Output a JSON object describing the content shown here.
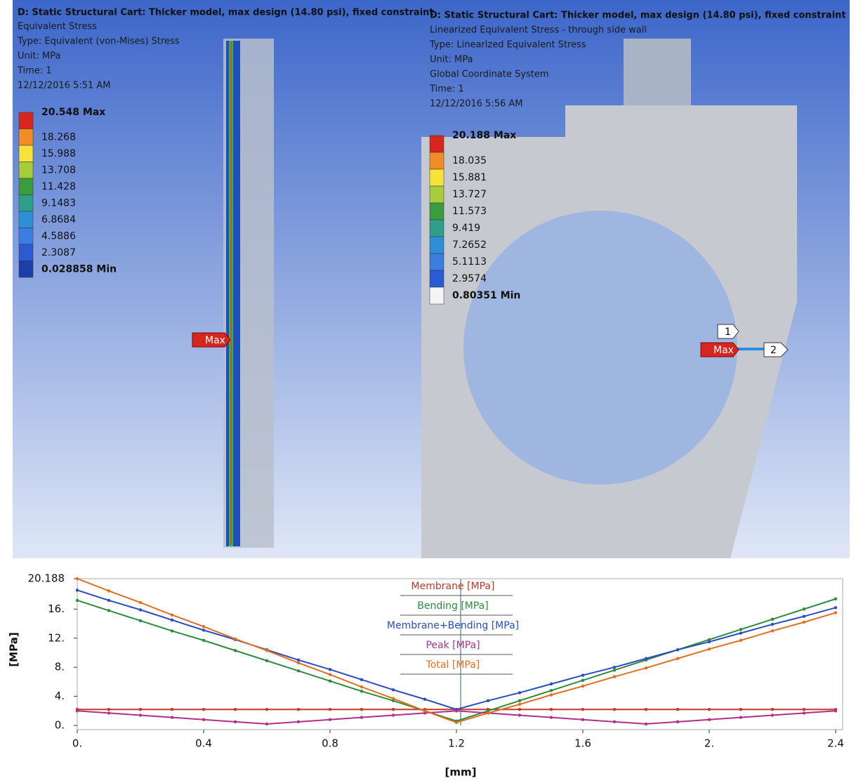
{
  "left_panel": {
    "title": "D: Static Structural Cart: Thicker model, max design (14.80 psi), fixed constraint",
    "lines": [
      "Equivalent Stress",
      "Type: Equivalent (von-Mises) Stress",
      "Unit: MPa",
      "Time: 1",
      "12/12/2016 5:51 AM"
    ],
    "legend": [
      "20.548 Max",
      "18.268",
      "15.988",
      "13.708",
      "11.428",
      "9.1483",
      "6.8684",
      "4.5886",
      "2.3087",
      "0.028858 Min"
    ],
    "probe": "Max"
  },
  "right_panel": {
    "title": "D: Static Structural Cart: Thicker model, max design (14.80 psi), fixed constraint",
    "lines": [
      "Linearized Equivalent Stress - through side wall",
      "Type: Linearized Equivalent Stress",
      "Unit: MPa",
      "Global Coordinate System",
      "Time: 1",
      "12/12/2016 5:56 AM"
    ],
    "legend": [
      "20.188 Max",
      "18.035",
      "15.881",
      "13.727",
      "11.573",
      "9.419",
      "7.2652",
      "5.1113",
      "2.9574",
      "0.80351 Min"
    ],
    "probe": "Max",
    "point_1": "1",
    "point_2": "2"
  },
  "chart_data": {
    "type": "line",
    "xlabel": "[mm]",
    "ylabel": "[MPa]",
    "x": [
      0,
      0.1,
      0.2,
      0.3,
      0.4,
      0.5,
      0.6,
      0.7,
      0.8,
      0.9,
      1.0,
      1.1,
      1.2,
      1.3,
      1.4,
      1.5,
      1.6,
      1.7,
      1.8,
      1.9,
      2.0,
      2.1,
      2.2,
      2.3,
      2.4
    ],
    "xlim": [
      0,
      2.4
    ],
    "xticks": [
      {
        "value": 0,
        "label": "0."
      },
      0.4,
      0.8,
      1.2,
      1.6,
      {
        "value": 2,
        "label": "2."
      },
      2.4
    ],
    "ylim": [
      0,
      20.188
    ],
    "yticks": [
      {
        "value": 0,
        "label": "0."
      },
      {
        "value": 4,
        "label": "4."
      },
      {
        "value": 8,
        "label": "8."
      },
      {
        "value": 12,
        "label": "12."
      },
      {
        "value": 16,
        "label": "16."
      },
      20.188
    ],
    "series": [
      {
        "name": "Membrane [MPa]",
        "color": "#c0392b",
        "values": [
          2.2,
          2.2,
          2.2,
          2.2,
          2.2,
          2.2,
          2.2,
          2.2,
          2.2,
          2.2,
          2.2,
          2.2,
          2.2,
          2.2,
          2.2,
          2.2,
          2.2,
          2.2,
          2.2,
          2.2,
          2.2,
          2.2,
          2.2,
          2.2,
          2.2
        ]
      },
      {
        "name": "Bending [MPa]",
        "color": "#2e8b3e",
        "values": [
          17.2,
          15.8,
          14.4,
          13.0,
          11.7,
          10.3,
          8.9,
          7.5,
          6.1,
          4.7,
          3.4,
          2.0,
          0.6,
          2.0,
          3.4,
          4.8,
          6.2,
          7.6,
          9.0,
          10.4,
          11.8,
          13.2,
          14.6,
          16.0,
          17.4
        ]
      },
      {
        "name": "Membrane+Bending [MPa]",
        "color": "#2a4dbf",
        "values": [
          18.6,
          17.2,
          15.9,
          14.5,
          13.1,
          11.8,
          10.4,
          9.0,
          7.7,
          6.3,
          4.9,
          3.6,
          2.2,
          3.4,
          4.5,
          5.7,
          6.9,
          8.0,
          9.2,
          10.4,
          11.5,
          12.7,
          13.9,
          15.0,
          16.2
        ]
      },
      {
        "name": "Peak [MPa]",
        "color": "#b0308a",
        "values": [
          2.0,
          1.7,
          1.4,
          1.1,
          0.8,
          0.5,
          0.2,
          0.5,
          0.8,
          1.1,
          1.4,
          1.7,
          2.0,
          1.7,
          1.4,
          1.1,
          0.8,
          0.5,
          0.2,
          0.5,
          0.8,
          1.1,
          1.4,
          1.7,
          2.0
        ]
      },
      {
        "name": "Total [MPa]",
        "color": "#e07020",
        "values": [
          20.188,
          18.5,
          16.9,
          15.2,
          13.6,
          11.9,
          10.3,
          8.6,
          7.0,
          5.3,
          3.7,
          2.0,
          0.4,
          1.7,
          2.9,
          4.2,
          5.4,
          6.7,
          7.9,
          9.2,
          10.5,
          11.7,
          13.0,
          14.2,
          15.5
        ]
      }
    ]
  }
}
